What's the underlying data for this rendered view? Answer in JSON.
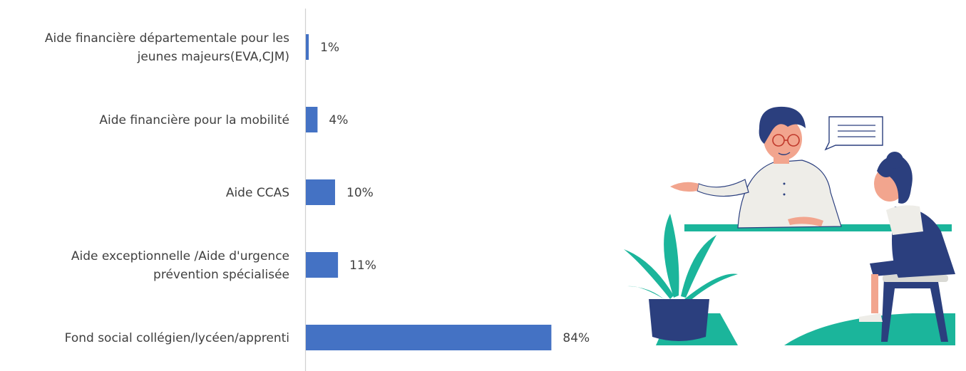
{
  "chart_data": {
    "type": "bar",
    "orientation": "horizontal",
    "categories": [
      "Aide financière départementale pour les jeunes majeurs(EVA,CJM)",
      "Aide financière pour la mobilité",
      "Aide CCAS",
      "Aide exceptionnelle /Aide d'urgence prévention spécialisée",
      "Fond social collégien/lycéen/apprenti"
    ],
    "category_lines": [
      [
        "Aide financière départementale pour les",
        "jeunes majeurs(EVA,CJM)"
      ],
      [
        "Aide financière pour la mobilité"
      ],
      [
        "Aide CCAS"
      ],
      [
        "Aide exceptionnelle /Aide d'urgence",
        "prévention spécialisée"
      ],
      [
        "Fond social collégien/lycéen/apprenti"
      ]
    ],
    "values": [
      1,
      4,
      10,
      11,
      84
    ],
    "data_labels": [
      "1%",
      "4%",
      "10%",
      "11%",
      "84%"
    ],
    "xlim": [
      0,
      100
    ],
    "grid": false,
    "bar_color": "#4472C4"
  },
  "illustration": {
    "icon": "counseling-conversation-illustration",
    "colors": {
      "teal": "#1BB59B",
      "navy": "#2B3F7E",
      "skin": "#F2A58E",
      "shirt": "#EEEDE8"
    }
  }
}
